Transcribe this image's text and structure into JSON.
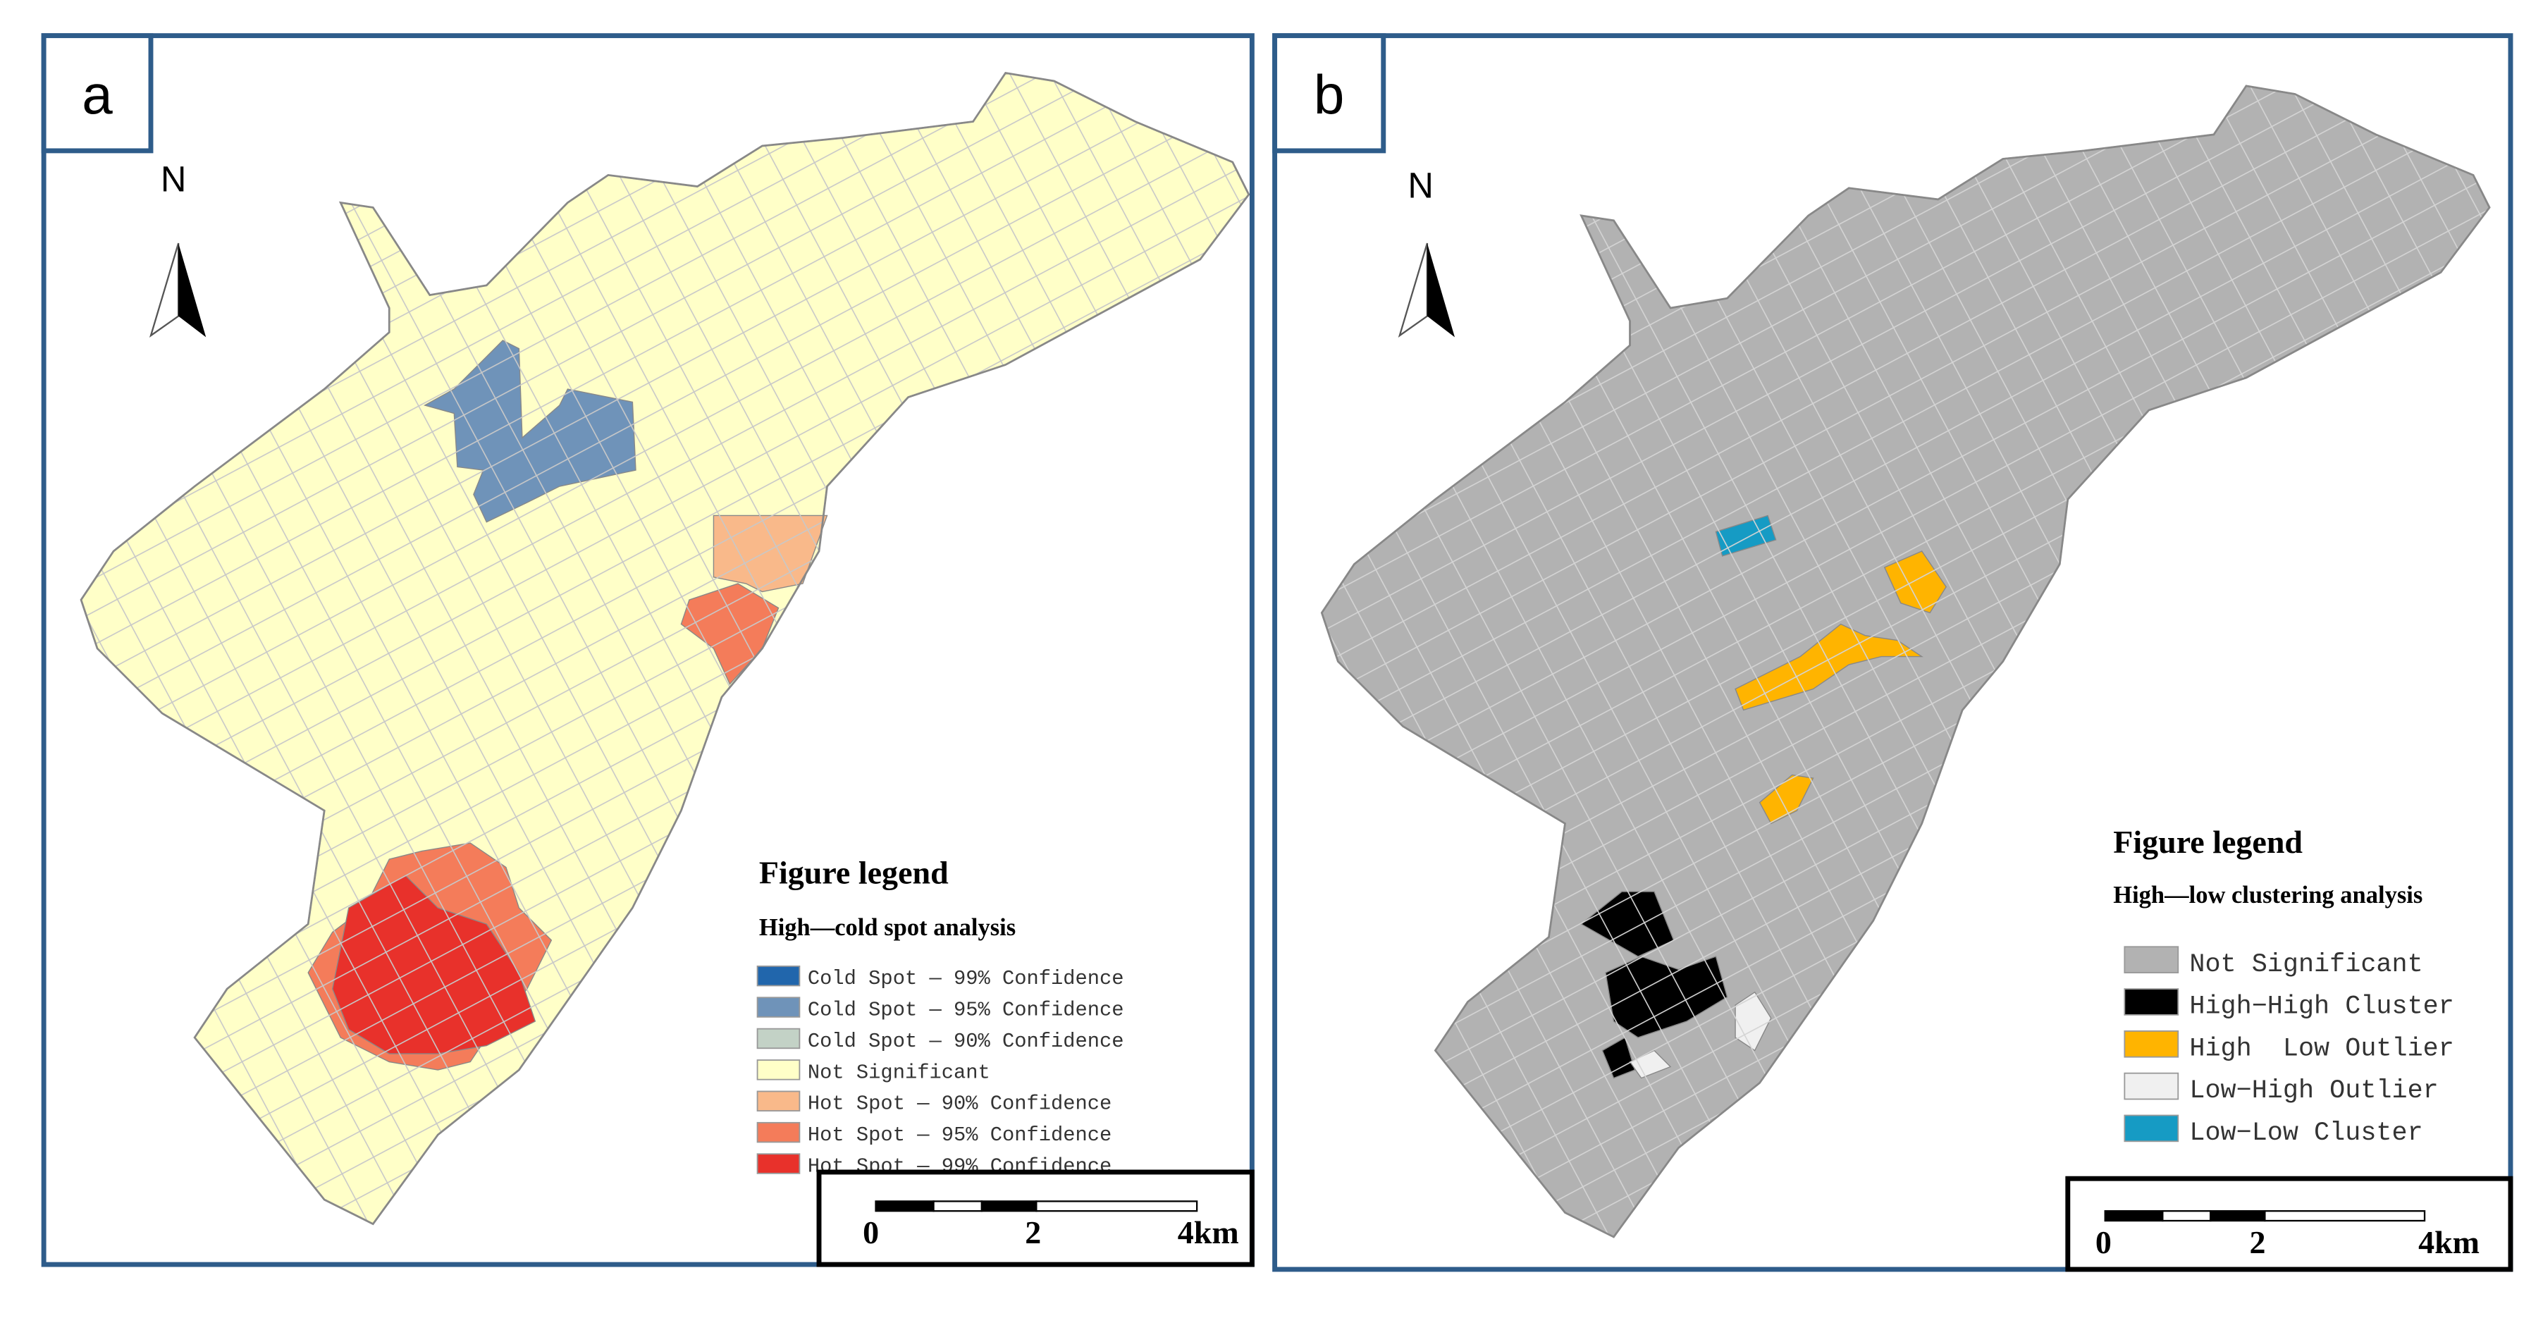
{
  "panels": [
    {
      "label": "a",
      "north": "N",
      "legend": {
        "title": "Figure legend",
        "subtitle": "High—cold spot analysis",
        "items": [
          {
            "label": "Cold Spot — 99% Confidence",
            "color": "#2166ac"
          },
          {
            "label": "Cold Spot — 95% Confidence",
            "color": "#6f93b9"
          },
          {
            "label": "Cold Spot — 90% Confidence",
            "color": "#c3d2c6"
          },
          {
            "label": "Not Significant",
            "color": "#ffffc8"
          },
          {
            "label": "Hot Spot — 90% Confidence",
            "color": "#f9b98a"
          },
          {
            "label": "Hot Spot — 95% Confidence",
            "color": "#f47c5a"
          },
          {
            "label": "Hot Spot — 99% Confidence",
            "color": "#e8312b"
          }
        ]
      },
      "scale": {
        "labels": [
          "0",
          "2",
          "4km"
        ]
      }
    },
    {
      "label": "b",
      "north": "N",
      "legend": {
        "title": "Figure legend",
        "subtitle": "High—low clustering analysis",
        "items": [
          {
            "label": "Not Significant",
            "color": "#b2b2b2"
          },
          {
            "label": "High−High Cluster",
            "color": "#000000"
          },
          {
            "label": "High  Low Outlier",
            "color": "#ffb400"
          },
          {
            "label": "Low−High Outlier",
            "color": "#f0f0f0"
          },
          {
            "label": "Low−Low Cluster",
            "color": "#169bc4"
          }
        ]
      },
      "scale": {
        "labels": [
          "0",
          "2",
          "4km"
        ]
      }
    }
  ]
}
